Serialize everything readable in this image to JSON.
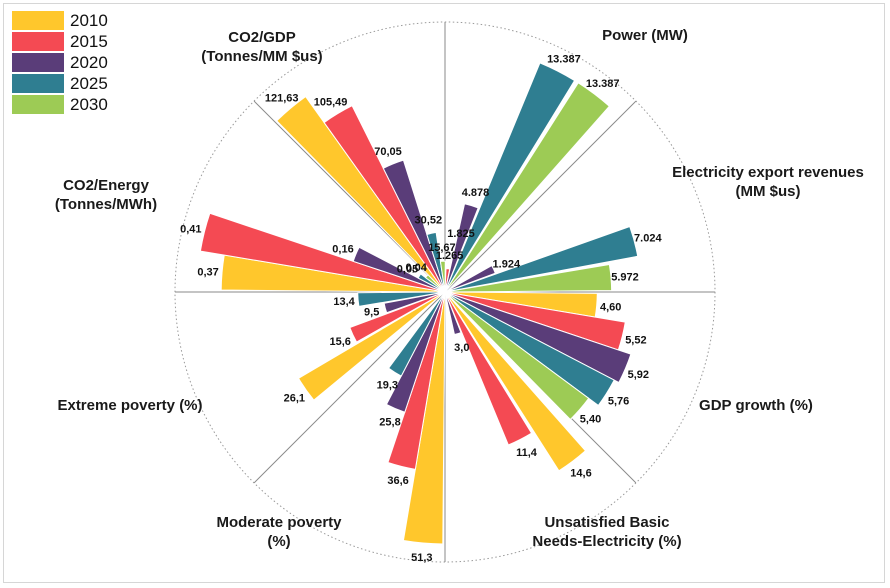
{
  "chart_data": {
    "type": "polar-bar",
    "categories": [
      "Power (MW)",
      "Electricity export revenues\n(MM $us)",
      "GDP growth (%)",
      "Unsatisfied Basic\nNeeds-Electricity (%)",
      "Moderate poverty\n(%)",
      "Extreme poverty (%)",
      "CO2/Energy\n(Tonnes/MWh)",
      "CO2/GDP\n(Tonnes/MM $us)"
    ],
    "series": [
      {
        "name": "2010",
        "color": "#FFC72C",
        "values": [
          null,
          null,
          4.6,
          14.6,
          51.3,
          26.1,
          0.37,
          121.63
        ],
        "labels": [
          "",
          "",
          "4,60",
          "14,6",
          "51,3",
          "26,1",
          "0,37",
          "121,63"
        ]
      },
      {
        "name": "2015",
        "color": "#F44A53",
        "values": [
          1265,
          null,
          5.52,
          11.4,
          36.6,
          15.6,
          0.41,
          105.49
        ],
        "labels": [
          "1.265",
          "",
          "5,52",
          "11,4",
          "36,6",
          "15,6",
          "0,41",
          "105,49"
        ]
      },
      {
        "name": "2020",
        "color": "#5A3D79",
        "values": [
          4878,
          1924,
          5.92,
          3.0,
          25.8,
          9.5,
          0.16,
          70.05
        ],
        "labels": [
          "4.878",
          "1.924",
          "5,92",
          "3,0",
          "25,8",
          "9,5",
          "0,16",
          "70,05"
        ]
      },
      {
        "name": "2025",
        "color": "#2F7E91",
        "values": [
          13387,
          7024,
          5.76,
          null,
          19.3,
          13.4,
          0.05,
          30.52
        ],
        "labels": [
          "13.387",
          "7.024",
          "5,76",
          "",
          "19,3",
          "13,4",
          "0,05",
          "30,52"
        ]
      },
      {
        "name": "2030",
        "color": "#9DCB55",
        "values": [
          13387,
          5972,
          5.4,
          null,
          null,
          null,
          0.04,
          15.67
        ],
        "labels": [
          "13.387",
          "5.972",
          "5,40",
          "",
          "",
          "",
          "0,04",
          "15,67"
        ]
      }
    ],
    "extra_labels": [
      "1.825"
    ],
    "legend_position": "top-left"
  }
}
